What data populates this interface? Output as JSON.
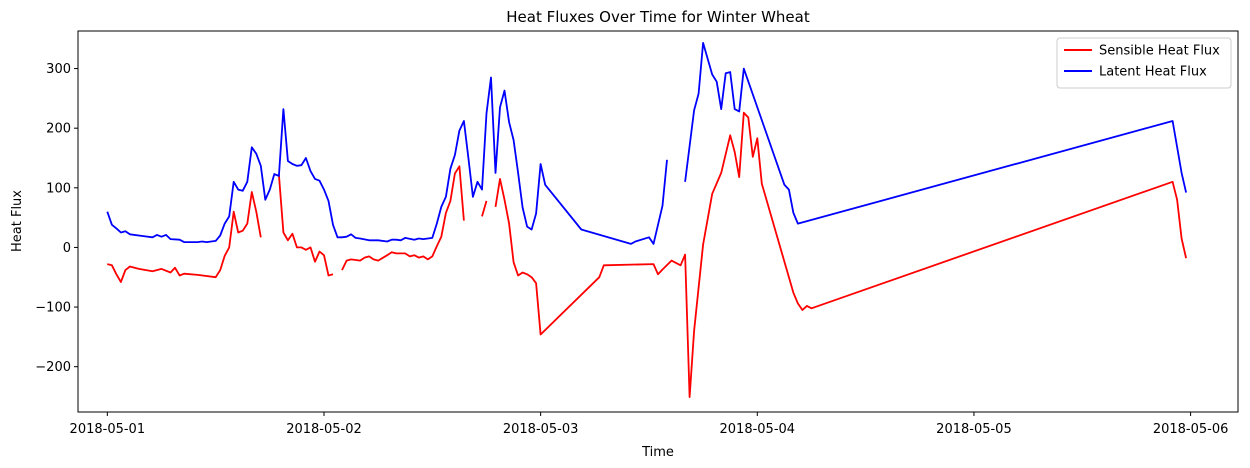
{
  "chart_data": {
    "type": "line",
    "title": "Heat Fluxes Over Time for Winter Wheat",
    "xlabel": "Time",
    "ylabel": "Heat Flux",
    "xlim": [
      "2018-04-30 20:45",
      "2018-05-06 05:15"
    ],
    "ylim": [
      -276,
      363
    ],
    "xticks": [
      "2018-05-01",
      "2018-05-02",
      "2018-05-03",
      "2018-05-04",
      "2018-05-05",
      "2018-05-06"
    ],
    "yticks": [
      -200,
      -100,
      0,
      100,
      200,
      300
    ],
    "ytick_labels": [
      "−200",
      "−100",
      "0",
      "100",
      "200",
      "300"
    ],
    "legend": {
      "position": "top-right"
    },
    "grid": false,
    "series": [
      {
        "name": "Sensible Heat Flux",
        "color": "#ff0000",
        "segments": [
          [
            [
              "2018-05-01 00:00",
              -28
            ],
            [
              "2018-05-01 00:30",
              -30
            ],
            [
              "2018-05-01 01:00",
              -45
            ],
            [
              "2018-05-01 01:30",
              -58
            ],
            [
              "2018-05-01 02:00",
              -38
            ],
            [
              "2018-05-01 02:30",
              -32
            ],
            [
              "2018-05-01 03:30",
              -36
            ],
            [
              "2018-05-01 05:00",
              -40
            ],
            [
              "2018-05-01 06:00",
              -36
            ],
            [
              "2018-05-01 07:00",
              -42
            ],
            [
              "2018-05-01 07:30",
              -34
            ],
            [
              "2018-05-01 08:00",
              -47
            ],
            [
              "2018-05-01 08:30",
              -44
            ],
            [
              "2018-05-01 10:00",
              -46
            ],
            [
              "2018-05-01 12:00",
              -50
            ],
            [
              "2018-05-01 12:30",
              -38
            ],
            [
              "2018-05-01 13:00",
              -14
            ],
            [
              "2018-05-01 13:30",
              0
            ],
            [
              "2018-05-01 14:00",
              60
            ],
            [
              "2018-05-01 14:30",
              25
            ],
            [
              "2018-05-01 15:00",
              28
            ],
            [
              "2018-05-01 15:30",
              40
            ],
            [
              "2018-05-01 16:00",
              93
            ],
            [
              "2018-05-01 16:30",
              60
            ],
            [
              "2018-05-01 17:00",
              17
            ]
          ],
          [
            [
              "2018-05-01 19:00",
              122
            ],
            [
              "2018-05-01 19:30",
              25
            ],
            [
              "2018-05-01 20:00",
              12
            ],
            [
              "2018-05-01 20:30",
              23
            ],
            [
              "2018-05-01 21:00",
              0
            ],
            [
              "2018-05-01 21:30",
              0
            ],
            [
              "2018-05-01 22:00",
              -4
            ],
            [
              "2018-05-01 22:30",
              0
            ],
            [
              "2018-05-01 23:00",
              -24
            ],
            [
              "2018-05-01 23:30",
              -7
            ],
            [
              "2018-05-02 00:00",
              -13
            ],
            [
              "2018-05-02 00:30",
              -47
            ],
            [
              "2018-05-02 01:00",
              -45
            ]
          ],
          [
            [
              "2018-05-02 02:00",
              -38
            ],
            [
              "2018-05-02 02:30",
              -22
            ],
            [
              "2018-05-02 03:00",
              -20
            ],
            [
              "2018-05-02 04:00",
              -22
            ],
            [
              "2018-05-02 04:30",
              -17
            ],
            [
              "2018-05-02 05:00",
              -15
            ],
            [
              "2018-05-02 05:30",
              -20
            ],
            [
              "2018-05-02 06:00",
              -22
            ],
            [
              "2018-05-02 07:00",
              -13
            ],
            [
              "2018-05-02 07:30",
              -8
            ],
            [
              "2018-05-02 08:00",
              -10
            ],
            [
              "2018-05-02 09:00",
              -10
            ],
            [
              "2018-05-02 09:30",
              -15
            ],
            [
              "2018-05-02 10:00",
              -13
            ],
            [
              "2018-05-02 10:30",
              -17
            ],
            [
              "2018-05-02 11:00",
              -15
            ],
            [
              "2018-05-02 11:30",
              -20
            ],
            [
              "2018-05-02 12:00",
              -15
            ],
            [
              "2018-05-02 12:30",
              2
            ],
            [
              "2018-05-02 13:00",
              18
            ],
            [
              "2018-05-02 13:30",
              58
            ],
            [
              "2018-05-02 14:00",
              78
            ],
            [
              "2018-05-02 14:30",
              124
            ],
            [
              "2018-05-02 15:00",
              136
            ],
            [
              "2018-05-02 15:30",
              45
            ]
          ],
          [
            [
              "2018-05-02 17:30",
              52
            ],
            [
              "2018-05-02 18:00",
              78
            ]
          ],
          [
            [
              "2018-05-02 19:00",
              68
            ],
            [
              "2018-05-02 19:30",
              115
            ],
            [
              "2018-05-02 20:00",
              80
            ],
            [
              "2018-05-02 20:30",
              40
            ],
            [
              "2018-05-02 21:00",
              -25
            ],
            [
              "2018-05-02 21:30",
              -47
            ],
            [
              "2018-05-02 22:00",
              -42
            ],
            [
              "2018-05-02 22:30",
              -45
            ],
            [
              "2018-05-02 23:00",
              -50
            ],
            [
              "2018-05-02 23:30",
              -60
            ],
            [
              "2018-05-03 00:00",
              -146
            ],
            [
              "2018-05-03 06:30",
              -50
            ],
            [
              "2018-05-03 07:00",
              -30
            ],
            [
              "2018-05-03 12:30",
              -28
            ],
            [
              "2018-05-03 13:00",
              -45
            ],
            [
              "2018-05-03 13:30",
              -37
            ],
            [
              "2018-05-03 14:30",
              -22
            ],
            [
              "2018-05-03 15:30",
              -30
            ],
            [
              "2018-05-03 16:00",
              -12
            ],
            [
              "2018-05-03 16:30",
              -251
            ],
            [
              "2018-05-03 17:00",
              -140
            ],
            [
              "2018-05-03 18:00",
              5
            ],
            [
              "2018-05-03 19:00",
              90
            ],
            [
              "2018-05-03 20:00",
              125
            ],
            [
              "2018-05-03 21:00",
              188
            ],
            [
              "2018-05-03 21:30",
              160
            ],
            [
              "2018-05-03 22:00",
              118
            ],
            [
              "2018-05-03 22:30",
              226
            ],
            [
              "2018-05-03 23:00",
              218
            ],
            [
              "2018-05-03 23:30",
              152
            ],
            [
              "2018-05-04 00:00",
              183
            ],
            [
              "2018-05-04 00:30",
              107
            ],
            [
              "2018-05-04 04:00",
              -76
            ],
            [
              "2018-05-04 04:30",
              -94
            ],
            [
              "2018-05-04 05:00",
              -105
            ],
            [
              "2018-05-04 05:30",
              -98
            ],
            [
              "2018-05-04 06:00",
              -102
            ],
            [
              "2018-05-05 22:00",
              110
            ],
            [
              "2018-05-05 22:30",
              80
            ],
            [
              "2018-05-05 23:00",
              15
            ],
            [
              "2018-05-05 23:30",
              -18
            ]
          ]
        ]
      },
      {
        "name": "Latent Heat Flux",
        "color": "#0000ff",
        "segments": [
          [
            [
              "2018-05-01 00:00",
              60
            ],
            [
              "2018-05-01 00:30",
              38
            ],
            [
              "2018-05-01 01:00",
              32
            ],
            [
              "2018-05-01 01:30",
              25
            ],
            [
              "2018-05-01 02:00",
              27
            ],
            [
              "2018-05-01 02:30",
              22
            ],
            [
              "2018-05-01 04:00",
              19
            ],
            [
              "2018-05-01 05:00",
              17
            ],
            [
              "2018-05-01 05:30",
              21
            ],
            [
              "2018-05-01 06:00",
              18
            ],
            [
              "2018-05-01 06:30",
              21
            ],
            [
              "2018-05-01 07:00",
              14
            ],
            [
              "2018-05-01 08:00",
              13
            ],
            [
              "2018-05-01 08:30",
              9
            ],
            [
              "2018-05-01 10:00",
              9
            ],
            [
              "2018-05-01 10:30",
              10
            ],
            [
              "2018-05-01 11:00",
              9
            ],
            [
              "2018-05-01 12:00",
              11
            ],
            [
              "2018-05-01 12:30",
              20
            ],
            [
              "2018-05-01 13:00",
              40
            ],
            [
              "2018-05-01 13:30",
              52
            ],
            [
              "2018-05-01 14:00",
              110
            ],
            [
              "2018-05-01 14:30",
              97
            ],
            [
              "2018-05-01 15:00",
              95
            ],
            [
              "2018-05-01 15:30",
              110
            ],
            [
              "2018-05-01 16:00",
              168
            ],
            [
              "2018-05-01 16:30",
              157
            ],
            [
              "2018-05-01 17:00",
              137
            ],
            [
              "2018-05-01 17:30",
              80
            ],
            [
              "2018-05-01 18:00",
              97
            ],
            [
              "2018-05-01 18:30",
              123
            ],
            [
              "2018-05-01 19:00",
              120
            ],
            [
              "2018-05-01 19:30",
              232
            ],
            [
              "2018-05-01 20:00",
              145
            ],
            [
              "2018-05-01 20:30",
              140
            ],
            [
              "2018-05-01 21:00",
              137
            ],
            [
              "2018-05-01 21:30",
              138
            ],
            [
              "2018-05-01 22:00",
              150
            ],
            [
              "2018-05-01 22:30",
              128
            ],
            [
              "2018-05-01 23:00",
              115
            ],
            [
              "2018-05-01 23:30",
              112
            ],
            [
              "2018-05-02 00:00",
              97
            ],
            [
              "2018-05-02 00:30",
              78
            ],
            [
              "2018-05-02 01:00",
              38
            ],
            [
              "2018-05-02 01:30",
              17
            ],
            [
              "2018-05-02 02:00",
              17
            ],
            [
              "2018-05-02 02:30",
              18
            ],
            [
              "2018-05-02 03:00",
              22
            ],
            [
              "2018-05-02 03:30",
              16
            ],
            [
              "2018-05-02 04:00",
              15
            ],
            [
              "2018-05-02 05:00",
              12
            ],
            [
              "2018-05-02 06:00",
              12
            ],
            [
              "2018-05-02 07:00",
              10
            ],
            [
              "2018-05-02 07:30",
              13
            ],
            [
              "2018-05-02 08:00",
              13
            ],
            [
              "2018-05-02 08:30",
              12
            ],
            [
              "2018-05-02 09:00",
              16
            ],
            [
              "2018-05-02 10:00",
              13
            ],
            [
              "2018-05-02 10:30",
              15
            ],
            [
              "2018-05-02 11:00",
              14
            ],
            [
              "2018-05-02 12:00",
              16
            ],
            [
              "2018-05-02 12:30",
              40
            ],
            [
              "2018-05-02 13:00",
              68
            ],
            [
              "2018-05-02 13:30",
              85
            ],
            [
              "2018-05-02 14:00",
              132
            ],
            [
              "2018-05-02 14:30",
              155
            ],
            [
              "2018-05-02 15:00",
              196
            ],
            [
              "2018-05-02 15:30",
              212
            ],
            [
              "2018-05-02 16:00",
              150
            ],
            [
              "2018-05-02 16:30",
              85
            ],
            [
              "2018-05-02 17:00",
              110
            ],
            [
              "2018-05-02 17:30",
              97
            ],
            [
              "2018-05-02 18:00",
              225
            ],
            [
              "2018-05-02 18:30",
              285
            ],
            [
              "2018-05-02 19:00",
              125
            ],
            [
              "2018-05-02 19:30",
              235
            ],
            [
              "2018-05-02 20:00",
              263
            ],
            [
              "2018-05-02 20:30",
              210
            ],
            [
              "2018-05-02 21:00",
              180
            ],
            [
              "2018-05-02 21:30",
              125
            ],
            [
              "2018-05-02 22:00",
              67
            ],
            [
              "2018-05-02 22:30",
              35
            ],
            [
              "2018-05-02 23:00",
              30
            ],
            [
              "2018-05-02 23:30",
              57
            ],
            [
              "2018-05-03 00:00",
              140
            ],
            [
              "2018-05-03 00:30",
              105
            ],
            [
              "2018-05-03 04:30",
              30
            ],
            [
              "2018-05-03 10:00",
              6
            ],
            [
              "2018-05-03 10:30",
              10
            ],
            [
              "2018-05-03 12:00",
              17
            ],
            [
              "2018-05-03 12:30",
              6
            ],
            [
              "2018-05-03 13:30",
              70
            ],
            [
              "2018-05-03 14:00",
              147
            ]
          ],
          [
            [
              "2018-05-03 16:00",
              110
            ],
            [
              "2018-05-03 17:00",
              230
            ],
            [
              "2018-05-03 17:30",
              258
            ],
            [
              "2018-05-03 18:00",
              343
            ],
            [
              "2018-05-03 19:00",
              290
            ],
            [
              "2018-05-03 19:30",
              278
            ],
            [
              "2018-05-03 20:00",
              232
            ],
            [
              "2018-05-03 20:30",
              292
            ],
            [
              "2018-05-03 21:00",
              294
            ],
            [
              "2018-05-03 21:30",
              232
            ],
            [
              "2018-05-03 22:00",
              228
            ],
            [
              "2018-05-03 22:30",
              300
            ],
            [
              "2018-05-04 03:00",
              105
            ],
            [
              "2018-05-04 03:30",
              97
            ],
            [
              "2018-05-04 04:00",
              58
            ],
            [
              "2018-05-04 04:30",
              40
            ],
            [
              "2018-05-05 22:00",
              212
            ],
            [
              "2018-05-05 23:00",
              125
            ],
            [
              "2018-05-05 23:30",
              92
            ]
          ]
        ]
      }
    ]
  }
}
